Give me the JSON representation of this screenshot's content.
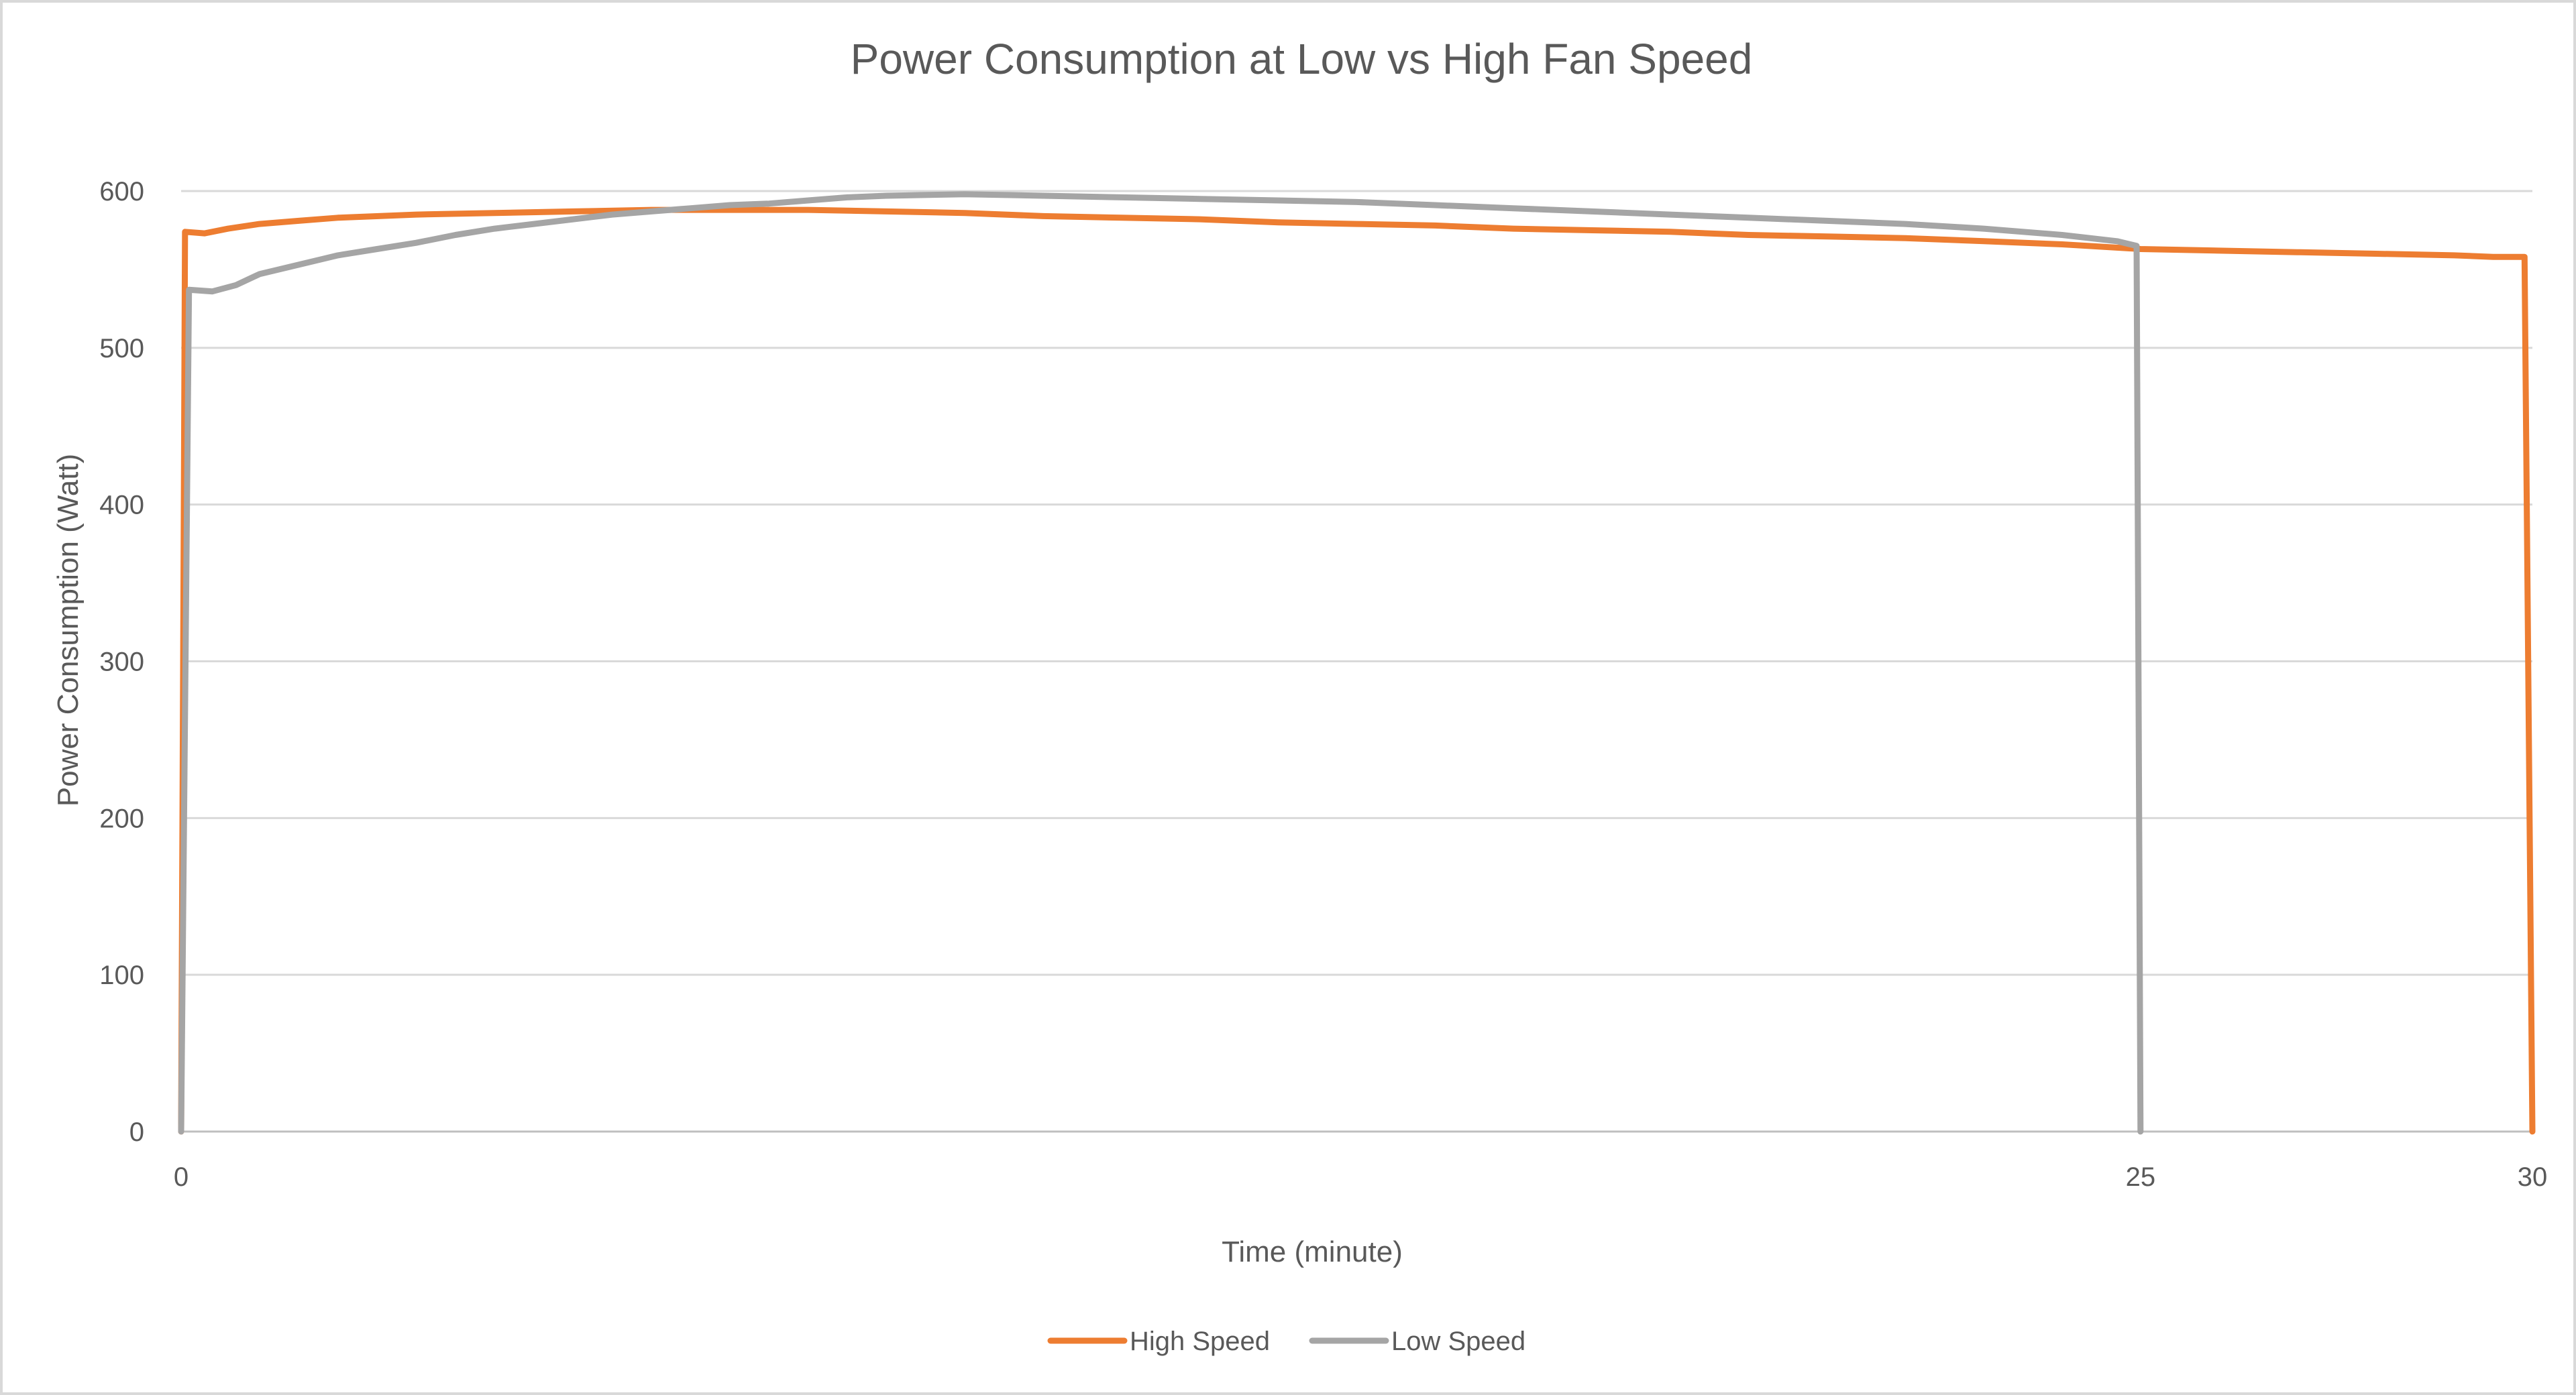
{
  "chart_data": {
    "type": "line",
    "title": "Power Consumption at Low vs High Fan Speed",
    "xlabel": "Time (minute)",
    "ylabel": "Power Consumption (Watt)",
    "xlim": [
      0,
      30
    ],
    "ylim": [
      0,
      600
    ],
    "x_ticks": [
      0,
      25,
      30
    ],
    "y_ticks": [
      0,
      100,
      200,
      300,
      400,
      500,
      600
    ],
    "grid": true,
    "legend_position": "bottom",
    "series": [
      {
        "name": "High Speed",
        "color": "#ED7D31",
        "points": [
          [
            0,
            0
          ],
          [
            0.05,
            574
          ],
          [
            0.3,
            573
          ],
          [
            0.6,
            576
          ],
          [
            1.0,
            579
          ],
          [
            1.5,
            581
          ],
          [
            2.0,
            583
          ],
          [
            3.0,
            585
          ],
          [
            4.0,
            586
          ],
          [
            5.0,
            587
          ],
          [
            6.0,
            588
          ],
          [
            7.0,
            588
          ],
          [
            8.0,
            588
          ],
          [
            9.0,
            587
          ],
          [
            10.0,
            586
          ],
          [
            11.0,
            584
          ],
          [
            12.0,
            583
          ],
          [
            13.0,
            582
          ],
          [
            14.0,
            580
          ],
          [
            15.0,
            579
          ],
          [
            16.0,
            578
          ],
          [
            17.0,
            576
          ],
          [
            18.0,
            575
          ],
          [
            19.0,
            574
          ],
          [
            20.0,
            572
          ],
          [
            21.0,
            571
          ],
          [
            22.0,
            570
          ],
          [
            23.0,
            568
          ],
          [
            24.0,
            566
          ],
          [
            25.0,
            563
          ],
          [
            26.0,
            562
          ],
          [
            27.0,
            561
          ],
          [
            28.0,
            560
          ],
          [
            29.0,
            559
          ],
          [
            29.5,
            558
          ],
          [
            29.9,
            558
          ],
          [
            30.0,
            0
          ]
        ]
      },
      {
        "name": "Low Speed",
        "color": "#A5A5A5",
        "points": [
          [
            0,
            0
          ],
          [
            0.1,
            537
          ],
          [
            0.4,
            536
          ],
          [
            0.7,
            540
          ],
          [
            1.0,
            547
          ],
          [
            1.5,
            553
          ],
          [
            2.0,
            559
          ],
          [
            2.5,
            563
          ],
          [
            3.0,
            567
          ],
          [
            3.5,
            572
          ],
          [
            4.0,
            576
          ],
          [
            4.5,
            579
          ],
          [
            5.0,
            582
          ],
          [
            5.5,
            585
          ],
          [
            6.0,
            587
          ],
          [
            6.5,
            589
          ],
          [
            7.0,
            591
          ],
          [
            7.5,
            592
          ],
          [
            8.0,
            594
          ],
          [
            8.5,
            596
          ],
          [
            9.0,
            597
          ],
          [
            10.0,
            598
          ],
          [
            11.0,
            597
          ],
          [
            12.0,
            596
          ],
          [
            13.0,
            595
          ],
          [
            14.0,
            594
          ],
          [
            15.0,
            593
          ],
          [
            16.0,
            591
          ],
          [
            17.0,
            589
          ],
          [
            18.0,
            587
          ],
          [
            19.0,
            585
          ],
          [
            20.0,
            583
          ],
          [
            21.0,
            581
          ],
          [
            22.0,
            579
          ],
          [
            23.0,
            576
          ],
          [
            24.0,
            572
          ],
          [
            24.7,
            568
          ],
          [
            24.95,
            565
          ],
          [
            25.0,
            0
          ]
        ]
      }
    ]
  }
}
